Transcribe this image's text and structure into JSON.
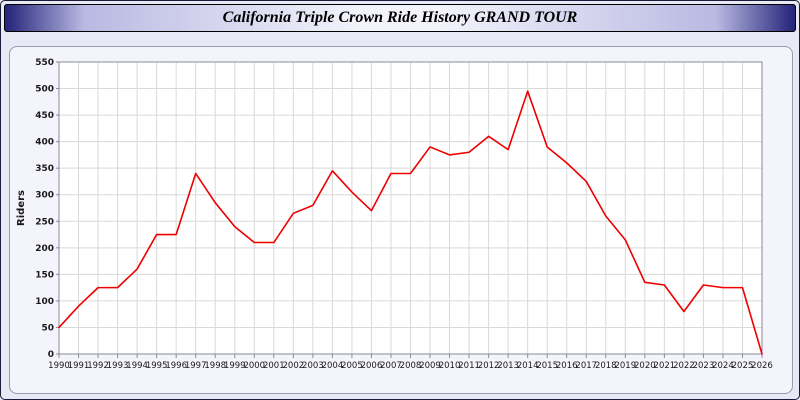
{
  "header": {
    "title": "California Triple Crown Ride History GRAND TOUR"
  },
  "chart_data": {
    "type": "line",
    "title": "California Triple Crown Ride History GRAND TOUR",
    "xlabel": "",
    "ylabel": "Riders",
    "ylim": [
      0,
      550
    ],
    "ytick_step": 50,
    "grid": true,
    "legend_position": "none",
    "line_color": "#ee0000",
    "plot_bg": "#ffffff",
    "grid_color": "#d9d9d9",
    "axis_color": "#8a8a9a",
    "label_color": "#1a1a1a",
    "x": [
      1990,
      1991,
      1992,
      1993,
      1994,
      1995,
      1996,
      1997,
      1998,
      1999,
      2000,
      2001,
      2002,
      2003,
      2004,
      2005,
      2006,
      2007,
      2008,
      2009,
      2010,
      2011,
      2012,
      2013,
      2014,
      2015,
      2016,
      2017,
      2018,
      2019,
      2020,
      2021,
      2022,
      2023,
      2024,
      2025,
      2026
    ],
    "series": [
      {
        "name": "Riders",
        "values": [
          50,
          90,
          125,
          125,
          160,
          225,
          225,
          340,
          285,
          240,
          210,
          210,
          265,
          280,
          345,
          305,
          270,
          340,
          340,
          390,
          375,
          380,
          410,
          385,
          495,
          390,
          360,
          325,
          260,
          215,
          135,
          130,
          80,
          130,
          125,
          125,
          0
        ]
      }
    ]
  }
}
